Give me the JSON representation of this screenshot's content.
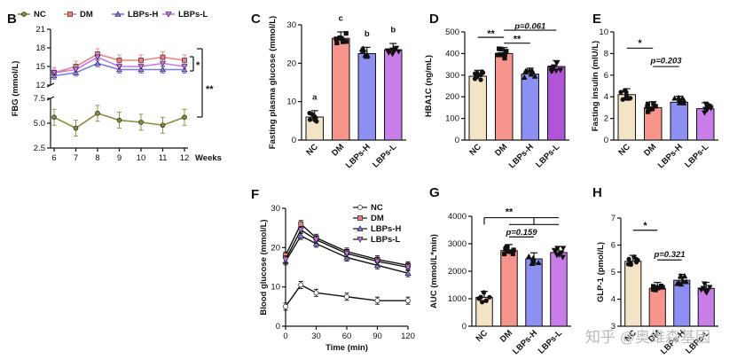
{
  "watermark": "知乎 @奥维森基因",
  "colors": {
    "NC": "#8b8b3a",
    "DM": "#f08080",
    "LBPsH": "#7b7bf0",
    "LBPsL": "#c678e8",
    "NCbar": "#f2e4c4",
    "DMbar": "#f7948c",
    "LBPsHbar": "#8d8ff2",
    "LBPsLbar": "#c87de8",
    "LBPsLbarD": "#b054d8"
  },
  "chart_data": [
    {
      "panel": "B",
      "type": "line",
      "ylabel": "FBG (mmol/L)",
      "xlabel": "Weeks",
      "x": [
        6,
        7,
        8,
        9,
        10,
        11,
        12
      ],
      "yticks_upper": [
        "21",
        "18",
        "15",
        "12"
      ],
      "yticks_lower": [
        "7.5",
        "5.0",
        "2.5"
      ],
      "xticks": [
        "6",
        "7",
        "8",
        "9",
        "10",
        "11",
        "12"
      ],
      "series": [
        {
          "name": "NC",
          "values": [
            5.6,
            4.5,
            6.0,
            5.3,
            5.1,
            4.8,
            5.6
          ]
        },
        {
          "name": "DM",
          "values": [
            14.0,
            15.0,
            17.0,
            16.0,
            16.0,
            16.5,
            16.0
          ]
        },
        {
          "name": "LBPs-H",
          "values": [
            13.5,
            14.0,
            15.5,
            14.5,
            14.5,
            14.5,
            14.5
          ]
        },
        {
          "name": "LBPs-L",
          "values": [
            14.0,
            14.5,
            16.5,
            15.0,
            15.0,
            15.5,
            15.0
          ]
        }
      ],
      "sig": [
        "*",
        "**"
      ]
    },
    {
      "panel": "C",
      "type": "bar",
      "ylabel": "Fasting plasma glucose (mmol/L)",
      "categories": [
        "NC",
        "DM",
        "LBPs-H",
        "LBPs-L"
      ],
      "values": [
        6.0,
        26.5,
        22.5,
        23.5
      ],
      "ylim": [
        0,
        30
      ],
      "yticks": [
        "0",
        "10",
        "20",
        "30"
      ],
      "letters": [
        "a",
        "c",
        "b",
        "b"
      ]
    },
    {
      "panel": "D",
      "type": "bar",
      "ylabel": "HBA1C (ng/mL)",
      "categories": [
        "NC",
        "DM",
        "LBPs-H",
        "LBPs-L"
      ],
      "values": [
        295,
        400,
        305,
        340
      ],
      "ylim": [
        0,
        500
      ],
      "yticks": [
        "0",
        "100",
        "200",
        "300",
        "400",
        "500"
      ],
      "sig": [
        "**",
        "**"
      ],
      "pvalue": "p=0.061"
    },
    {
      "panel": "E",
      "type": "bar",
      "ylabel": "Fasting insulin (mIU/L)",
      "categories": [
        "NC",
        "DM",
        "LBPs-H",
        "LBPs-L"
      ],
      "values": [
        4.2,
        3.0,
        3.5,
        2.9
      ],
      "ylim": [
        0,
        10
      ],
      "yticks": [
        "0",
        "2",
        "4",
        "6",
        "8",
        "10"
      ],
      "sig": [
        "*"
      ],
      "pvalue": "p=0.203"
    },
    {
      "panel": "F",
      "type": "line",
      "ylabel": "Blood glucose (mmol/L)",
      "xlabel": "Time (min)",
      "x": [
        0,
        15,
        30,
        60,
        90,
        120
      ],
      "ylim": [
        0,
        30
      ],
      "yticks": [
        "0",
        "10",
        "20",
        "30"
      ],
      "xticks": [
        "0",
        "30",
        "60",
        "90",
        "120"
      ],
      "series": [
        {
          "name": "NC",
          "values": [
            5,
            10.5,
            8.5,
            7.5,
            6.5,
            6.5
          ]
        },
        {
          "name": "DM",
          "values": [
            18,
            26,
            22.5,
            19,
            17,
            15.5
          ]
        },
        {
          "name": "LBPs-H",
          "values": [
            16.5,
            23,
            21,
            17.5,
            15.5,
            13.5
          ]
        },
        {
          "name": "LBPs-L",
          "values": [
            17,
            24.5,
            22,
            18.5,
            16.5,
            15
          ]
        }
      ]
    },
    {
      "panel": "G",
      "type": "bar",
      "ylabel": "AUC (mmol/L*min)",
      "categories": [
        "NC",
        "DM",
        "LBPs-H",
        "LBPs-L"
      ],
      "values": [
        1050,
        2750,
        2450,
        2680
      ],
      "ylim": [
        0,
        4000
      ],
      "yticks": [
        "0",
        "1000",
        "2000",
        "3000",
        "4000"
      ],
      "sig": [
        "**"
      ],
      "pvalue": "p=0.159"
    },
    {
      "panel": "H",
      "type": "bar",
      "ylabel": "GLP-1 (pmol/L)",
      "categories": [
        "NC",
        "DM",
        "LBPs-H",
        "LBPs-L"
      ],
      "values": [
        5.4,
        4.4,
        4.7,
        4.4
      ],
      "ylim": [
        3,
        7
      ],
      "yticks": [
        "3",
        "4",
        "5",
        "6",
        "7"
      ],
      "sig": [
        "*"
      ],
      "pvalue": "p=0.321"
    }
  ]
}
